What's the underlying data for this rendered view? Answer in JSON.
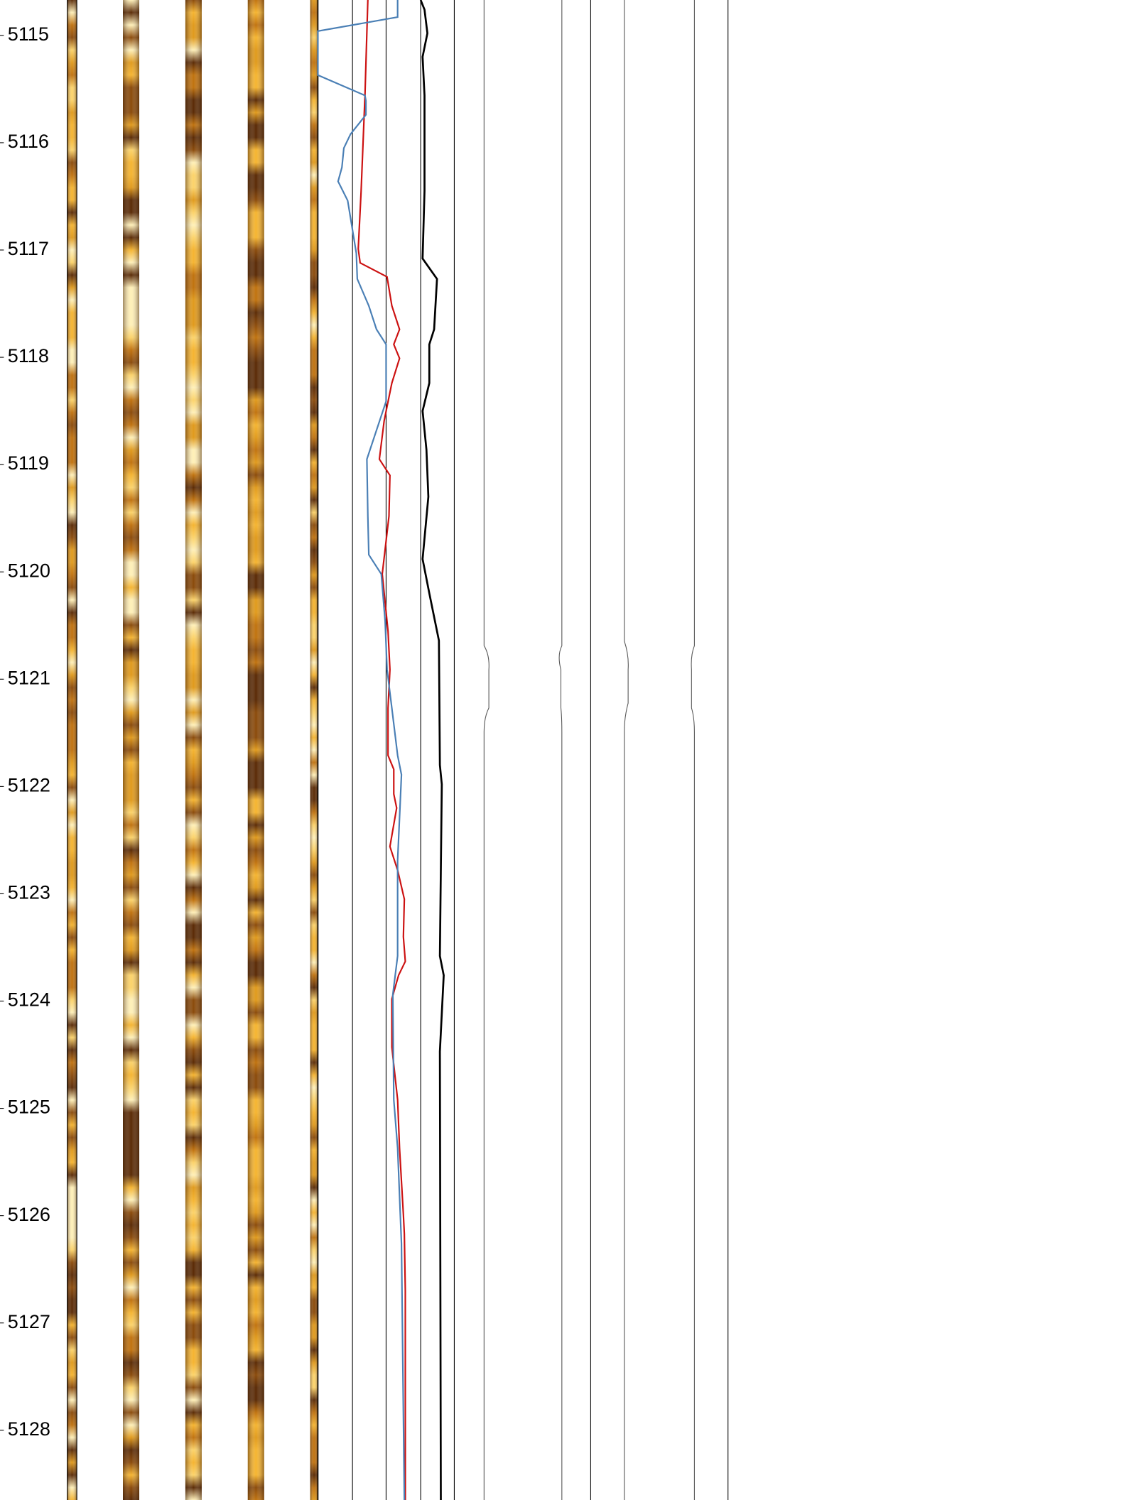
{
  "chart_data": {
    "type": "well-log",
    "ylim": [
      5114.67,
      5128.65
    ],
    "yticks": [
      5115,
      5116,
      5117,
      5118,
      5119,
      5120,
      5121,
      5122,
      5123,
      5124,
      5125,
      5126,
      5127,
      5128
    ],
    "xlim": [
      0,
      142
    ],
    "series": [
      {
        "color": "#cc1111",
        "depths": [
          5114.67,
          5115.56,
          5116.45,
          5116.99,
          5117.12,
          5117.25,
          5117.52,
          5117.74,
          5117.88,
          5118.01,
          5118.24,
          5118.59,
          5118.95,
          5119.1,
          5119.48,
          5120.02,
          5120.55,
          5120.91,
          5121.27,
          5121.71,
          5121.84,
          5122.07,
          5122.2,
          5122.56,
          5122.78,
          5123.05,
          5123.4,
          5123.63,
          5123.76,
          5123.98,
          5124.43,
          5124.92,
          5125.37,
          5125.99,
          5126.17,
          5126.7,
          5128.65
        ],
        "values": [
          52,
          49,
          45,
          42,
          44,
          72,
          77,
          85,
          79,
          85,
          77,
          69,
          64,
          75,
          74,
          67,
          73,
          75,
          73,
          73,
          79,
          79,
          82,
          75,
          83,
          90,
          89,
          91,
          84,
          77,
          77,
          83,
          85,
          89,
          90,
          91,
          91
        ]
      },
      {
        "color": "#4a7fb5",
        "depths": [
          5114.67,
          5114.83,
          5114.96,
          5115.37,
          5115.56,
          5115.61,
          5115.74,
          5115.92,
          5116.05,
          5116.23,
          5116.36,
          5116.54,
          5117.03,
          5117.27,
          5117.52,
          5117.74,
          5117.88,
          5118.41,
          5118.95,
          5119.48,
          5119.84,
          5120.02,
          5120.46,
          5120.91,
          5121.27,
          5121.71,
          5121.89,
          5122.69,
          5123.58,
          5123.94,
          5124.92,
          5125.37,
          5126.26,
          5128.65
        ],
        "values": [
          83,
          83,
          0,
          0,
          49,
          50,
          50,
          34,
          27,
          25,
          21,
          31,
          40,
          41,
          53,
          61,
          71,
          71,
          51,
          52,
          53,
          66,
          70,
          72,
          77,
          83,
          87,
          83,
          83,
          78,
          79,
          83,
          87,
          90
        ]
      },
      {
        "color": "#000000",
        "depths": [
          5114.67,
          5114.76,
          5114.98,
          5115.2,
          5115.56,
          5116.45,
          5117.08,
          5117.27,
          5117.74,
          5117.88,
          5118.24,
          5118.5,
          5118.86,
          5119.3,
          5119.88,
          5120.2,
          5120.64,
          5121.8,
          5121.98,
          5123.58,
          5123.76,
          5124.47,
          5128.65
        ],
        "values": [
          107,
          111,
          114,
          109,
          111,
          111,
          109,
          124,
          121,
          116,
          116,
          109,
          113,
          115,
          109,
          116,
          126,
          127,
          129,
          127,
          131,
          127,
          128
        ]
      }
    ]
  }
}
